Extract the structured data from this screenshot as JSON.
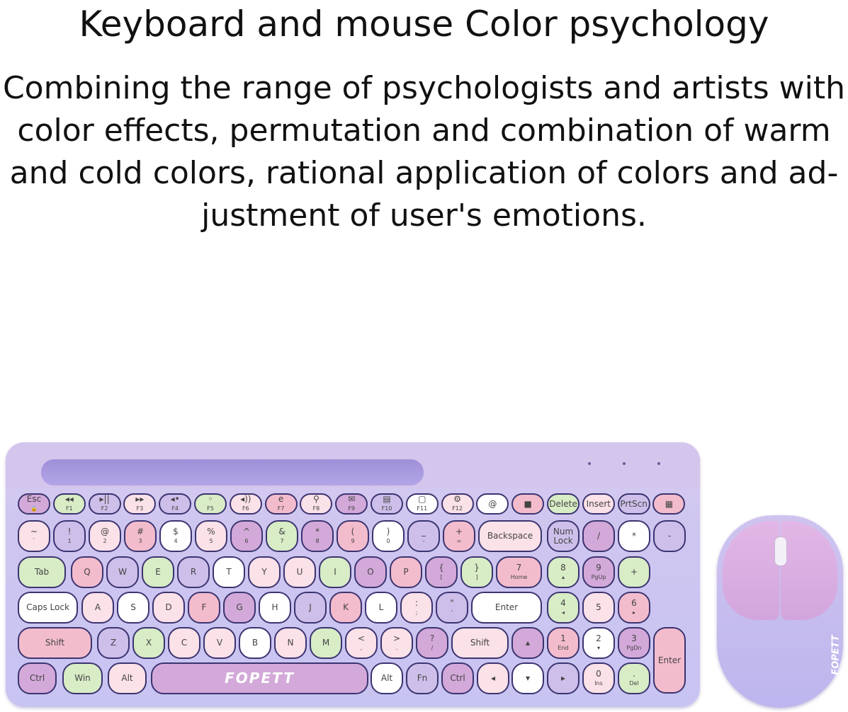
{
  "header": {
    "title": "Keyboard and mouse Color psychology",
    "description_lines": [
      "Combining the range of psychologists and artists with",
      "color effects, permutation and combination of warm",
      "and cold colors, rational application of colors and ad-",
      "justment of user's emotions."
    ]
  },
  "colors": {
    "L": "#cdbfea",
    "G": "#d8ecc6",
    "P": "#f3bccd",
    "p": "#fbe1e8",
    "W": "#ffffff",
    "M": "#d3a9d9"
  },
  "keyboard": {
    "brand": "FOPETT",
    "rows": [
      [
        [
          "Esc",
          "🔒",
          "M"
        ],
        [
          "◂◂",
          "F1",
          "G"
        ],
        [
          "▸||",
          "F2",
          "L"
        ],
        [
          "▸▸",
          "F3",
          "p"
        ],
        [
          "◂•",
          "F4",
          "L"
        ],
        [
          "◦",
          "F5",
          "G"
        ],
        [
          "◂))",
          "F6",
          "p"
        ],
        [
          "e",
          "F7",
          "P"
        ],
        [
          "⚲",
          "F8",
          "p"
        ],
        [
          "✉",
          "F9",
          "M"
        ],
        [
          "▤",
          "F10",
          "L"
        ],
        [
          "▢",
          "F11",
          "W"
        ],
        [
          "⚙",
          "F12",
          "p"
        ],
        [
          "@",
          "",
          "W"
        ],
        [
          "■",
          "",
          "P"
        ],
        [
          "Delete",
          "",
          "G"
        ],
        [
          "Insert",
          "",
          "p"
        ],
        [
          "PrtScn",
          "",
          "L"
        ],
        [
          "▦",
          "",
          "P"
        ]
      ],
      [
        [
          "~",
          "`",
          "p"
        ],
        [
          "!",
          "1",
          "L"
        ],
        [
          "@",
          "2",
          "p"
        ],
        [
          "#",
          "3",
          "P"
        ],
        [
          "$",
          "4",
          "W"
        ],
        [
          "%",
          "5",
          "p"
        ],
        [
          "^",
          "6",
          "M"
        ],
        [
          "&",
          "7",
          "G"
        ],
        [
          "*",
          "8",
          "M"
        ],
        [
          "(",
          "9",
          "P"
        ],
        [
          ")",
          "0",
          "W"
        ],
        [
          "_",
          "-",
          "L"
        ],
        [
          "+",
          "=",
          "P"
        ],
        [
          "Backspace",
          "",
          "p"
        ],
        [
          "Num Lock",
          "",
          "L"
        ],
        [
          "/",
          "",
          "M"
        ],
        [
          "*",
          "",
          "W"
        ],
        [
          "-",
          "",
          "L"
        ]
      ],
      [
        [
          "Tab",
          "",
          "G"
        ],
        [
          "Q",
          "",
          "P"
        ],
        [
          "W",
          "",
          "L"
        ],
        [
          "E",
          "",
          "G"
        ],
        [
          "R",
          "",
          "L"
        ],
        [
          "T",
          "",
          "W"
        ],
        [
          "Y",
          "",
          "p"
        ],
        [
          "U",
          "",
          "p"
        ],
        [
          "I",
          "",
          "G"
        ],
        [
          "O",
          "",
          "M"
        ],
        [
          "P",
          "",
          "P"
        ],
        [
          "{",
          "[",
          "M"
        ],
        [
          "}",
          "]",
          "G"
        ],
        [
          "|",
          "\\",
          "L"
        ],
        [
          "7",
          "Home",
          "P"
        ],
        [
          "8",
          "▴",
          "G"
        ],
        [
          "9",
          "PgUp",
          "M"
        ],
        [
          "+",
          "",
          "G"
        ]
      ],
      [
        [
          "Caps Lock",
          "",
          "W"
        ],
        [
          "A",
          "",
          "p"
        ],
        [
          "S",
          "",
          "W"
        ],
        [
          "D",
          "",
          "p"
        ],
        [
          "F",
          "",
          "P"
        ],
        [
          "G",
          "",
          "M"
        ],
        [
          "H",
          "",
          "W"
        ],
        [
          "J",
          "",
          "L"
        ],
        [
          "K",
          "",
          "P"
        ],
        [
          "L",
          "",
          "W"
        ],
        [
          ":",
          ";",
          "p"
        ],
        [
          "\"",
          "'",
          "L"
        ],
        [
          "Enter",
          "",
          "W"
        ],
        [
          "4",
          "◂",
          "G"
        ],
        [
          "5",
          "",
          "p"
        ],
        [
          "6",
          "▸",
          "P"
        ]
      ],
      [
        [
          "Shift",
          "",
          "P"
        ],
        [
          "Z",
          "",
          "L"
        ],
        [
          "X",
          "",
          "G"
        ],
        [
          "C",
          "",
          "p"
        ],
        [
          "V",
          "",
          "p"
        ],
        [
          "B",
          "",
          "W"
        ],
        [
          "N",
          "",
          "p"
        ],
        [
          "M",
          "",
          "G"
        ],
        [
          "<",
          ",",
          "p"
        ],
        [
          ">",
          ".",
          "p"
        ],
        [
          "?",
          "/",
          "M"
        ],
        [
          "Shift",
          "",
          "p"
        ],
        [
          "▴",
          "",
          "M"
        ],
        [
          "1",
          "End",
          "P"
        ],
        [
          "2",
          "▾",
          "W"
        ],
        [
          "3",
          "PgDn",
          "M"
        ],
        [
          "Enter",
          "",
          "P"
        ]
      ],
      [
        [
          "Ctrl",
          "",
          "M"
        ],
        [
          "Win",
          "",
          "G"
        ],
        [
          "Alt",
          "",
          "p"
        ],
        [
          "FOPETT",
          "",
          "M"
        ],
        [
          "Alt",
          "",
          "W"
        ],
        [
          "Fn",
          "",
          "L"
        ],
        [
          "Ctrl",
          "",
          "M"
        ],
        [
          "◂",
          "",
          "p"
        ],
        [
          "▾",
          "",
          "W"
        ],
        [
          "▸",
          "",
          "L"
        ],
        [
          "0",
          "Ins",
          "p"
        ],
        [
          ".",
          "Del",
          "G"
        ]
      ]
    ]
  },
  "mouse": {
    "brand": "FOPETT"
  }
}
